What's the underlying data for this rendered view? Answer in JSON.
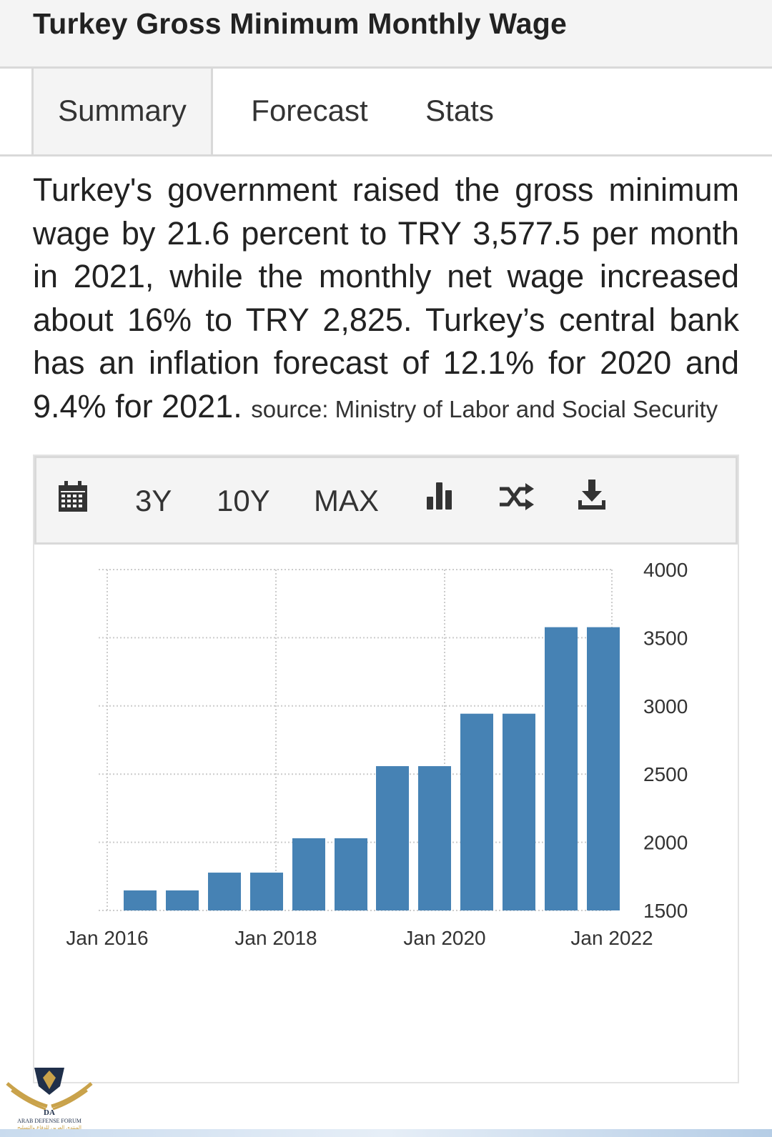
{
  "header": {
    "title": "Turkey Gross Minimum Monthly Wage"
  },
  "tabs": [
    {
      "label": "Summary",
      "active": true
    },
    {
      "label": "Forecast",
      "active": false
    },
    {
      "label": "Stats",
      "active": false
    }
  ],
  "summary": {
    "text": "Turkey's government raised the gross minimum wage by 21.6 percent to TRY 3,577.5 per month in 2021, while the monthly net wage increased about 16% to TRY 2,825. Turkey’s central bank has an inflation forecast of 12.1% for 2020 and 9.4% for 2021.",
    "source": "source: Ministry of Labor and Social Security"
  },
  "toolbar": {
    "range_buttons": [
      "3Y",
      "10Y",
      "MAX"
    ],
    "icons": [
      "calendar-icon",
      "bar-chart-icon",
      "shuffle-icon",
      "download-icon"
    ]
  },
  "watermark": {
    "line1": "DA",
    "line2": "ARAB DEFENSE FORUM",
    "line3": "المنتدى العربي للدفاع والتسليح"
  },
  "colors": {
    "bar": "#4682b4",
    "grid": "#cccccc",
    "toolbar_bg": "#f4f4f4"
  },
  "chart_data": {
    "type": "bar",
    "title": "",
    "xlabel": "",
    "ylabel": "",
    "x": [
      "Jan 2016",
      "Jul 2016",
      "Jan 2017",
      "Jul 2017",
      "Jan 2018",
      "Jul 2018",
      "Jan 2019",
      "Jul 2019",
      "Jan 2020",
      "Jul 2020",
      "Jan 2021",
      "Jul 2021"
    ],
    "values": [
      1647,
      1647,
      1777.5,
      1777.5,
      2029.5,
      2029.5,
      2558.4,
      2558.4,
      2943,
      2943,
      3577.5,
      3577.5
    ],
    "x_tick_labels": [
      "Jan 2016",
      "Jan 2018",
      "Jan 2020",
      "Jan 2022"
    ],
    "y_ticks": [
      1500,
      2000,
      2500,
      3000,
      3500,
      4000
    ],
    "ylim": [
      1500,
      4000
    ],
    "y_axis_position": "right",
    "grid": true
  }
}
